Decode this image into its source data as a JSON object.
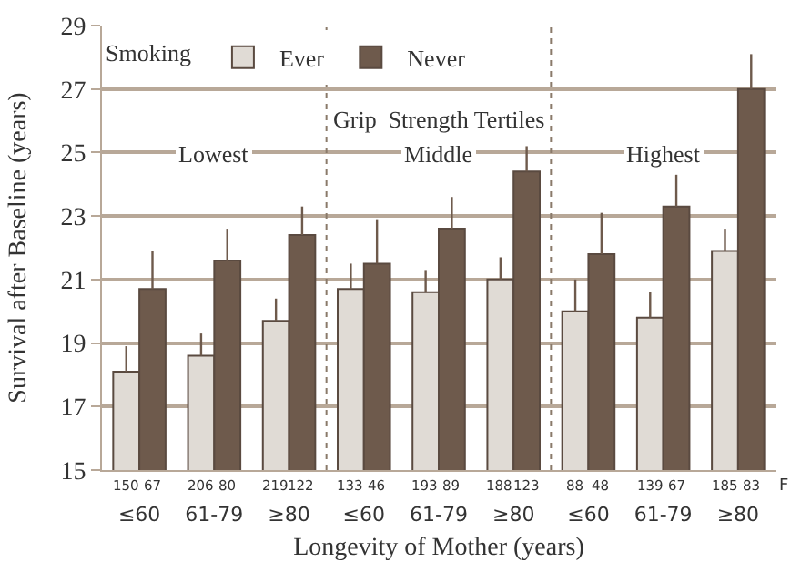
{
  "chart_data": {
    "type": "bar",
    "xlabel": "Longevity of Mother (years)",
    "ylabel": "Survival after Baseline (years)",
    "legend_title": "Smoking",
    "categories": [
      "≤60",
      "61-79",
      "≥80",
      "≤60",
      "61-79",
      "≥80",
      "≤60",
      "61-79",
      "≥80"
    ],
    "series": [
      {
        "name": "Ever",
        "color": "#e0dbd5",
        "values": [
          18.1,
          18.6,
          19.7,
          20.7,
          20.6,
          21.0,
          20.0,
          19.8,
          21.9
        ],
        "errors": [
          [
            18.1,
            18.9
          ],
          [
            18.6,
            19.3
          ],
          [
            19.7,
            20.4
          ],
          [
            20.7,
            21.5
          ],
          [
            20.6,
            21.3
          ],
          [
            21.0,
            21.7
          ],
          [
            20.0,
            21.0
          ],
          [
            19.8,
            20.6
          ],
          [
            21.9,
            22.6
          ]
        ]
      },
      {
        "name": "Never",
        "color": "#6e5a4c",
        "values": [
          20.7,
          21.6,
          22.4,
          21.5,
          22.6,
          24.4,
          21.8,
          23.3,
          27.0
        ],
        "errors": [
          [
            20.7,
            21.9
          ],
          [
            21.6,
            22.6
          ],
          [
            22.4,
            23.3
          ],
          [
            21.5,
            22.9
          ],
          [
            22.6,
            23.6
          ],
          [
            24.4,
            25.2
          ],
          [
            21.8,
            23.1
          ],
          [
            23.3,
            24.3
          ],
          [
            27.0,
            28.1
          ]
        ]
      }
    ],
    "ylim": [
      15,
      29
    ],
    "yticks": [
      15,
      17,
      19,
      21,
      23,
      25,
      27,
      29
    ],
    "grid": "y",
    "legend": "top left",
    "annotations": [
      "150",
      "67",
      "206",
      "80",
      "219",
      "122",
      "133",
      "46",
      "193",
      "89",
      "188",
      "123",
      "88",
      "48",
      "139",
      "67",
      "185",
      "83",
      "F",
      "Grip  Strength Tertiles",
      "Lowest",
      "Middle",
      "Highest"
    ]
  }
}
